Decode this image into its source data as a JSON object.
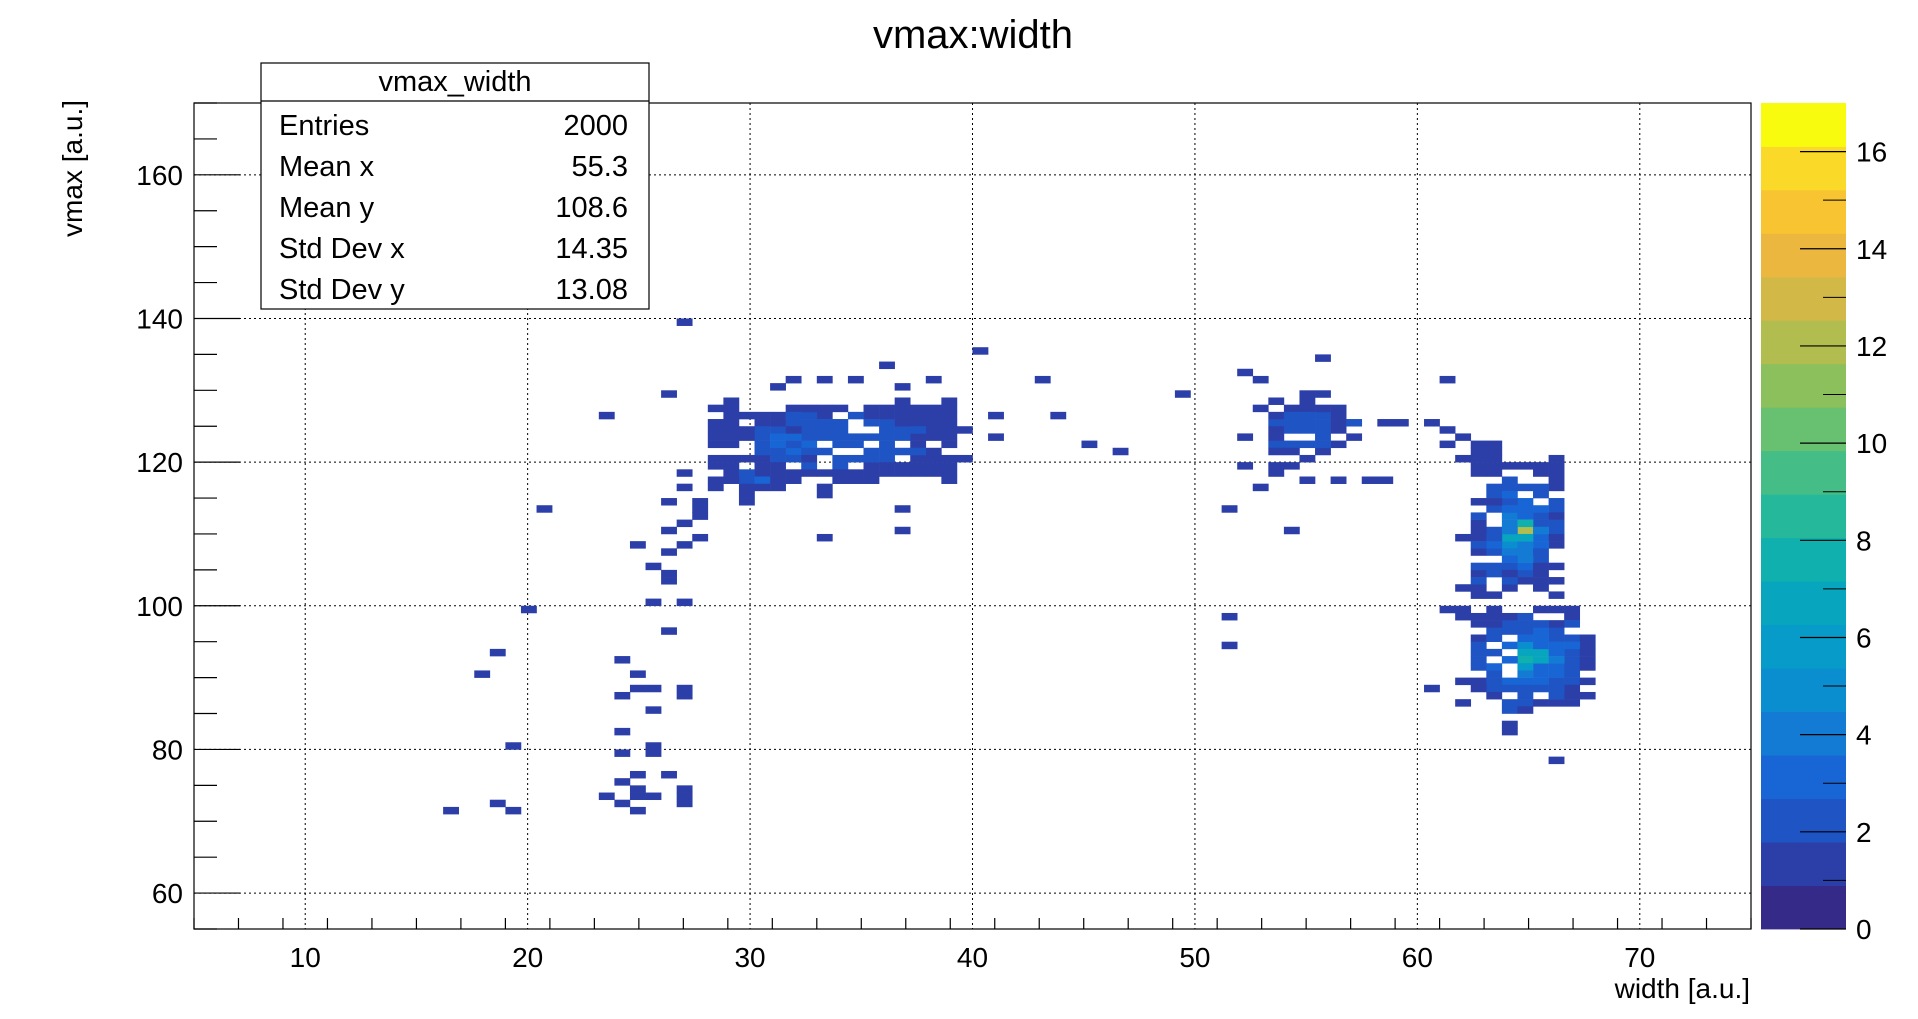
{
  "chart_data": {
    "type": "heatmap",
    "title": "vmax:width",
    "xlabel": "width [a.u.]",
    "ylabel": "vmax [a.u.]",
    "xlim": [
      5,
      75
    ],
    "ylim": [
      55,
      170
    ],
    "x_ticks": [
      "10",
      "20",
      "30",
      "40",
      "50",
      "60",
      "70"
    ],
    "y_ticks": [
      "60",
      "80",
      "100",
      "120",
      "140",
      "160"
    ],
    "grid": true,
    "palette": [
      "#352a87",
      "#2c3fa8",
      "#1f54c4",
      "#1866d6",
      "#147bd5",
      "#0a8ed0",
      "#069bc9",
      "#07a6be",
      "#10b0ae",
      "#25b89b",
      "#44be86",
      "#67c170",
      "#8cc05c",
      "#b1bd4e",
      "#d2b847",
      "#ebb73f",
      "#f8c432",
      "#fad928",
      "#f9fb0e"
    ],
    "zlim": [
      0,
      17
    ],
    "z_ticks": [
      "0",
      "2",
      "4",
      "6",
      "8",
      "10",
      "12",
      "14",
      "16"
    ],
    "stats": {
      "name": "vmax_width",
      "rows": [
        {
          "label": "Entries",
          "value": "2000"
        },
        {
          "label": "Mean x",
          "value": "55.3"
        },
        {
          "label": "Mean y",
          "value": "108.6"
        },
        {
          "label": "Std Dev x",
          "value": "14.35"
        },
        {
          "label": "Std Dev y",
          "value": "13.08"
        }
      ]
    },
    "points": [
      [
        27.1,
        139.8,
        1
      ],
      [
        40.0,
        135.5,
        1
      ],
      [
        56.0,
        134.5,
        1
      ],
      [
        36.3,
        133.0,
        1
      ],
      [
        52.0,
        132.0,
        1
      ],
      [
        31.9,
        131.0,
        1
      ],
      [
        33.1,
        131.0,
        1
      ],
      [
        35.0,
        131.0,
        1
      ],
      [
        38.0,
        131.0,
        1
      ],
      [
        42.9,
        131.0,
        1
      ],
      [
        61.0,
        131.0,
        1
      ],
      [
        53.0,
        131.0,
        1
      ],
      [
        26.3,
        129.0,
        1
      ],
      [
        49.7,
        129.5,
        1
      ],
      [
        54.7,
        129.5,
        1
      ],
      [
        55.7,
        129.0,
        1
      ],
      [
        31.1,
        130.6,
        1
      ],
      [
        36.7,
        130.6,
        1
      ],
      [
        23.7,
        126.0,
        1
      ],
      [
        43.7,
        126.0,
        1
      ],
      [
        41.3,
        126.0,
        1
      ],
      [
        59.3,
        125.5,
        1
      ],
      [
        58.3,
        125.5,
        1
      ],
      [
        60.5,
        125.0,
        1
      ],
      [
        61.5,
        124.0,
        1
      ],
      [
        39.7,
        124.0,
        1
      ],
      [
        40.7,
        123.0,
        1
      ],
      [
        45.3,
        122.7,
        1
      ],
      [
        46.7,
        121.7,
        1
      ],
      [
        52.3,
        123.5,
        1
      ],
      [
        52.0,
        119.5,
        1
      ],
      [
        53.3,
        118.0,
        1
      ],
      [
        61.3,
        122.0,
        1
      ],
      [
        62.1,
        120.8,
        1
      ],
      [
        62.1,
        123.3,
        1
      ],
      [
        39.7,
        120.0,
        1
      ],
      [
        27.1,
        118.4,
        1
      ],
      [
        27.3,
        116.4,
        1
      ],
      [
        28.7,
        116.4,
        1
      ],
      [
        29.6,
        116.0,
        1
      ],
      [
        29.9,
        115.0,
        1
      ],
      [
        29.6,
        114.8,
        1
      ],
      [
        33.0,
        116.6,
        1
      ],
      [
        34.5,
        118.4,
        1
      ],
      [
        36.3,
        118.4,
        1
      ],
      [
        38.0,
        118.4,
        1
      ],
      [
        33.1,
        115.2,
        1
      ],
      [
        36.7,
        113.4,
        1
      ],
      [
        26.3,
        114.5,
        1
      ],
      [
        27.5,
        114.0,
        1
      ],
      [
        27.5,
        113.0,
        1
      ],
      [
        27.7,
        112.0,
        1
      ],
      [
        27.1,
        111.5,
        1
      ],
      [
        26.1,
        110.5,
        1
      ],
      [
        36.7,
        110.7,
        1
      ],
      [
        33.3,
        109.1,
        1
      ],
      [
        27.2,
        108.4,
        1
      ],
      [
        26.7,
        108.4,
        1
      ],
      [
        27.5,
        109.0,
        1
      ],
      [
        25.1,
        108.4,
        1
      ],
      [
        26.5,
        107.0,
        1
      ],
      [
        25.9,
        105.3,
        1
      ],
      [
        26.3,
        104.3,
        1
      ],
      [
        26.5,
        103.3,
        1
      ],
      [
        25.9,
        100.0,
        1
      ],
      [
        27.3,
        100.0,
        1
      ],
      [
        20.9,
        113.4,
        1
      ],
      [
        54.7,
        117.9,
        1
      ],
      [
        57.7,
        117.9,
        1
      ],
      [
        56.7,
        117.9,
        1
      ],
      [
        58.3,
        117.9,
        1
      ],
      [
        53.0,
        116.2,
        1
      ],
      [
        51.3,
        113.4,
        1
      ],
      [
        54.4,
        110.8,
        1
      ],
      [
        20.0,
        99.7,
        1
      ],
      [
        51.5,
        98.6,
        1
      ],
      [
        51.3,
        94.6,
        1
      ],
      [
        26.5,
        96.4,
        1
      ],
      [
        18.7,
        93.7,
        1
      ],
      [
        17.9,
        90.6,
        1
      ],
      [
        24.1,
        92.1,
        1
      ],
      [
        24.9,
        90.4,
        1
      ],
      [
        24.7,
        88.0,
        1
      ],
      [
        25.3,
        88.0,
        1
      ],
      [
        24.1,
        87.5,
        1
      ],
      [
        26.7,
        87.6,
        1
      ],
      [
        27.2,
        88.6,
        1
      ],
      [
        25.3,
        85.6,
        1
      ],
      [
        24.2,
        82.7,
        1
      ],
      [
        19.3,
        80.2,
        1
      ],
      [
        23.9,
        79.2,
        1
      ],
      [
        25.5,
        79.4,
        1
      ],
      [
        25.5,
        80.1,
        1
      ],
      [
        25.1,
        76.5,
        1
      ],
      [
        26.1,
        76.5,
        1
      ],
      [
        23.9,
        75.8,
        1
      ],
      [
        25.1,
        74.3,
        1
      ],
      [
        24.7,
        73.4,
        1
      ],
      [
        25.6,
        73.4,
        1
      ],
      [
        26.7,
        74.2,
        1
      ],
      [
        27.1,
        73.3,
        1
      ],
      [
        23.8,
        73.0,
        1
      ],
      [
        23.9,
        72.5,
        1
      ],
      [
        26.8,
        72.5,
        1
      ],
      [
        18.8,
        72.5,
        1
      ],
      [
        16.2,
        71.7,
        1
      ],
      [
        19.4,
        71.5,
        1
      ],
      [
        24.7,
        71.0,
        1
      ],
      [
        60.7,
        88.4,
        1
      ],
      [
        66.2,
        78.4,
        1
      ],
      [
        64.4,
        82.3,
        1
      ],
      [
        64.4,
        83.6,
        1
      ]
    ],
    "clusters": [
      {
        "xr": [
          28.4,
          39.4
        ],
        "yr": [
          117.5,
          128.2
        ],
        "n": 230,
        "zmax": 3,
        "seed": 11
      },
      {
        "xr": [
          30.2,
          32.8
        ],
        "yr": [
          120.5,
          124.5
        ],
        "n": 30,
        "zmax": 5,
        "seed": 12
      },
      {
        "xr": [
          29.0,
          31.8
        ],
        "yr": [
          116.5,
          119.5
        ],
        "n": 20,
        "zmax": 3,
        "seed": 13
      },
      {
        "xr": [
          53.0,
          56.8
        ],
        "yr": [
          119.5,
          128.5
        ],
        "n": 55,
        "zmax": 3,
        "seed": 21
      },
      {
        "xr": [
          56.3,
          57.8
        ],
        "yr": [
          123.8,
          126.4
        ],
        "n": 6,
        "zmax": 2,
        "seed": 22
      },
      {
        "xr": [
          62.6,
          66.6
        ],
        "yr": [
          101.5,
          120.2
        ],
        "n": 130,
        "zmax": 5,
        "seed": 31
      },
      {
        "xr": [
          63.7,
          65.6
        ],
        "yr": [
          104.5,
          114.8
        ],
        "n": 55,
        "zmax": 9,
        "seed": 32
      },
      {
        "xr": [
          64.2,
          65.0
        ],
        "yr": [
          109.5,
          112.0
        ],
        "n": 10,
        "zmax": 15,
        "seed": 33
      },
      {
        "xr": [
          62.2,
          63.4
        ],
        "yr": [
          100.5,
          111.0
        ],
        "n": 15,
        "zmax": 3,
        "seed": 34
      },
      {
        "xr": [
          61.2,
          62.4
        ],
        "yr": [
          98.8,
          100.2
        ],
        "n": 4,
        "zmax": 2,
        "seed": 35
      },
      {
        "xr": [
          62.2,
          67.8
        ],
        "yr": [
          86.0,
          100.0
        ],
        "n": 150,
        "zmax": 5,
        "seed": 41
      },
      {
        "xr": [
          64.2,
          66.5
        ],
        "yr": [
          89.0,
          96.5
        ],
        "n": 55,
        "zmax": 10,
        "seed": 42
      },
      {
        "xr": [
          64.8,
          65.6
        ],
        "yr": [
          92.4,
          94.8
        ],
        "n": 8,
        "zmax": 14,
        "seed": 43
      },
      {
        "xr": [
          62.4,
          63.6
        ],
        "yr": [
          120.5,
          122.6
        ],
        "n": 8,
        "zmax": 2,
        "seed": 44
      },
      {
        "xr": [
          63.2,
          65.5
        ],
        "yr": [
          85.4,
          87.0
        ],
        "n": 10,
        "zmax": 3,
        "seed": 45
      }
    ]
  }
}
